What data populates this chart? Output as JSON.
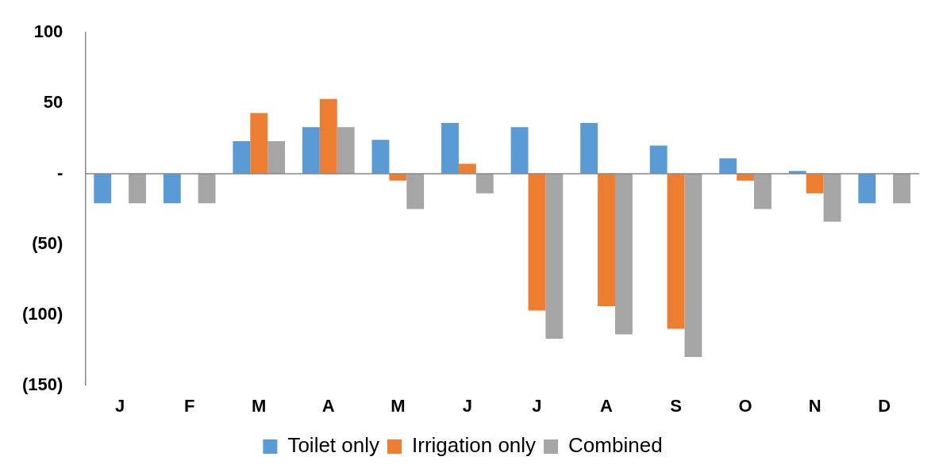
{
  "chart_data": {
    "type": "bar",
    "categories": [
      "J",
      "F",
      "M",
      "A",
      "M",
      "J",
      "J",
      "A",
      "S",
      "O",
      "N",
      "D"
    ],
    "series": [
      {
        "name": "Toilet only",
        "color": "#5b9bd5",
        "values": [
          -21,
          -21,
          23,
          33,
          24,
          36,
          33,
          36,
          20,
          11,
          2,
          -21
        ]
      },
      {
        "name": "Irrigation only",
        "color": "#ed7d31",
        "values": [
          0,
          0,
          43,
          53,
          -5,
          7,
          -97,
          -94,
          -110,
          -5,
          -14,
          0
        ]
      },
      {
        "name": "Combined",
        "color": "#a5a5a5",
        "values": [
          -21,
          -21,
          23,
          33,
          -25,
          -14,
          -117,
          -114,
          -130,
          -25,
          -34,
          -21
        ]
      }
    ],
    "ylim": [
      -150,
      100
    ],
    "yticks": [
      {
        "value": -150,
        "label": "(150)"
      },
      {
        "value": -100,
        "label": "(100)"
      },
      {
        "value": -50,
        "label": "(50)"
      },
      {
        "value": 0,
        "label": "-"
      },
      50,
      100
    ],
    "ref_lines": [
      {
        "axis": "y",
        "value": 0,
        "color": "#888888"
      }
    ],
    "grid": false,
    "legend": "bottom"
  }
}
